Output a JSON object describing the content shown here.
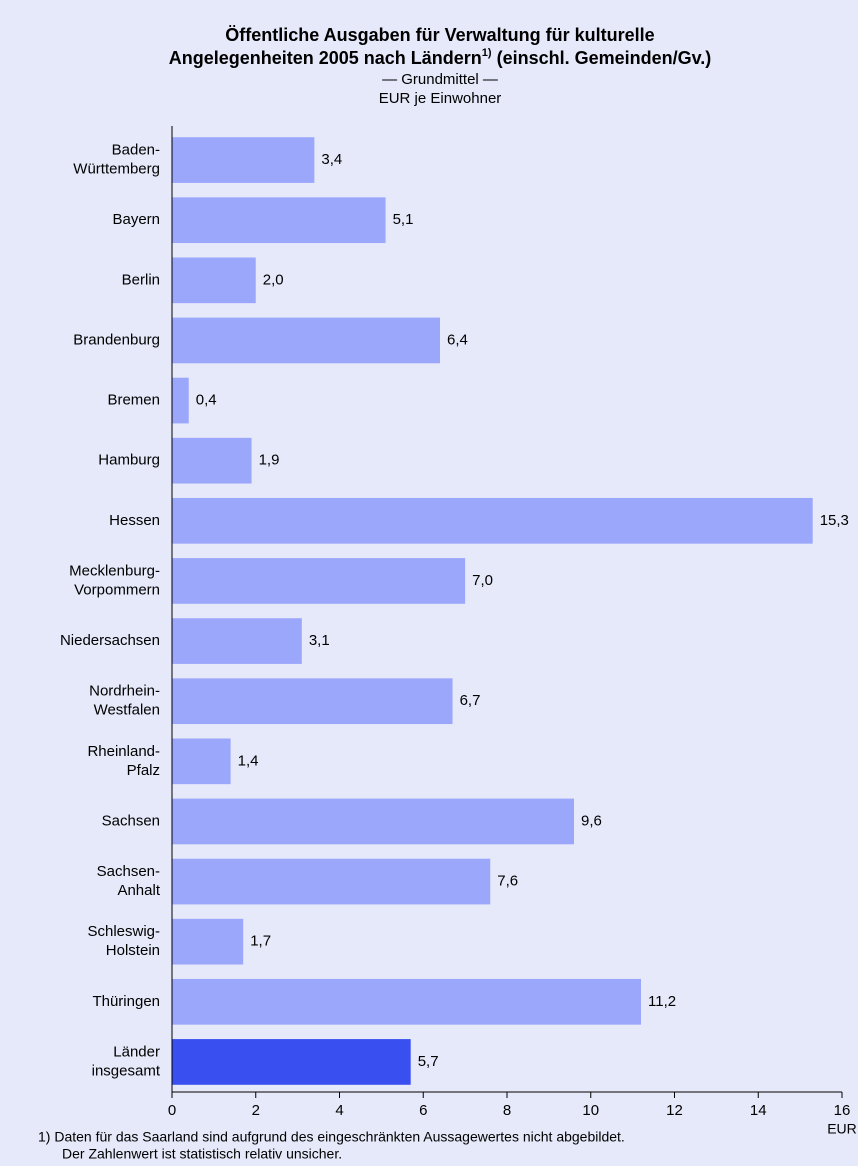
{
  "chart_data": {
    "type": "barh",
    "title": {
      "line1": "Öffentliche Ausgaben für Verwaltung für kulturelle",
      "line2": "Angelegenheiten 2005 nach Ländern",
      "footnote_mark": "1)",
      "line2_rest": "(einschl. Gemeinden/Gv.)"
    },
    "subtitle": [
      "— Grundmittel —",
      "EUR je Einwohner"
    ],
    "categories": [
      [
        "Baden-",
        "Württemberg"
      ],
      [
        "Bayern"
      ],
      [
        "Berlin"
      ],
      [
        "Brandenburg"
      ],
      [
        "Bremen"
      ],
      [
        "Hamburg"
      ],
      [
        "Hessen"
      ],
      [
        "Mecklenburg-",
        "Vorpommern"
      ],
      [
        "Niedersachsen"
      ],
      [
        "Nordrhein-",
        "Westfalen"
      ],
      [
        "Rheinland-",
        "Pfalz"
      ],
      [
        "Sachsen"
      ],
      [
        "Sachsen-",
        "Anhalt"
      ],
      [
        "Schleswig-",
        "Holstein"
      ],
      [
        "Thüringen"
      ],
      [
        "Länder",
        "insgesamt"
      ]
    ],
    "values": [
      3.4,
      5.1,
      2.0,
      6.4,
      0.4,
      1.9,
      15.3,
      7.0,
      3.1,
      6.7,
      1.4,
      9.6,
      7.6,
      1.7,
      11.2,
      5.7
    ],
    "value_labels": [
      "3,4",
      "5,1",
      "2,0",
      "6,4",
      "0,4",
      "1,9",
      "15,3",
      "7,0",
      "3,1",
      "6,7",
      "1,4",
      "9,6",
      "7,6",
      "1,7",
      "11,2",
      "5,7"
    ],
    "colors": [
      "#9ba7fb",
      "#9ba7fb",
      "#9ba7fb",
      "#9ba7fb",
      "#9ba7fb",
      "#9ba7fb",
      "#9ba7fb",
      "#9ba7fb",
      "#9ba7fb",
      "#9ba7fb",
      "#9ba7fb",
      "#9ba7fb",
      "#9ba7fb",
      "#9ba7fb",
      "#9ba7fb",
      "#3a4ff0"
    ],
    "xlim": [
      0,
      16
    ],
    "xticks": [
      0,
      2,
      4,
      6,
      8,
      10,
      12,
      14,
      16
    ],
    "x_label": "EUR",
    "footnote": [
      "1) Daten für das Saarland sind aufgrund des eingeschränkten Aussagewertes nicht abgebildet.",
      "Der Zahlenwert ist statistisch relativ unsicher."
    ]
  }
}
